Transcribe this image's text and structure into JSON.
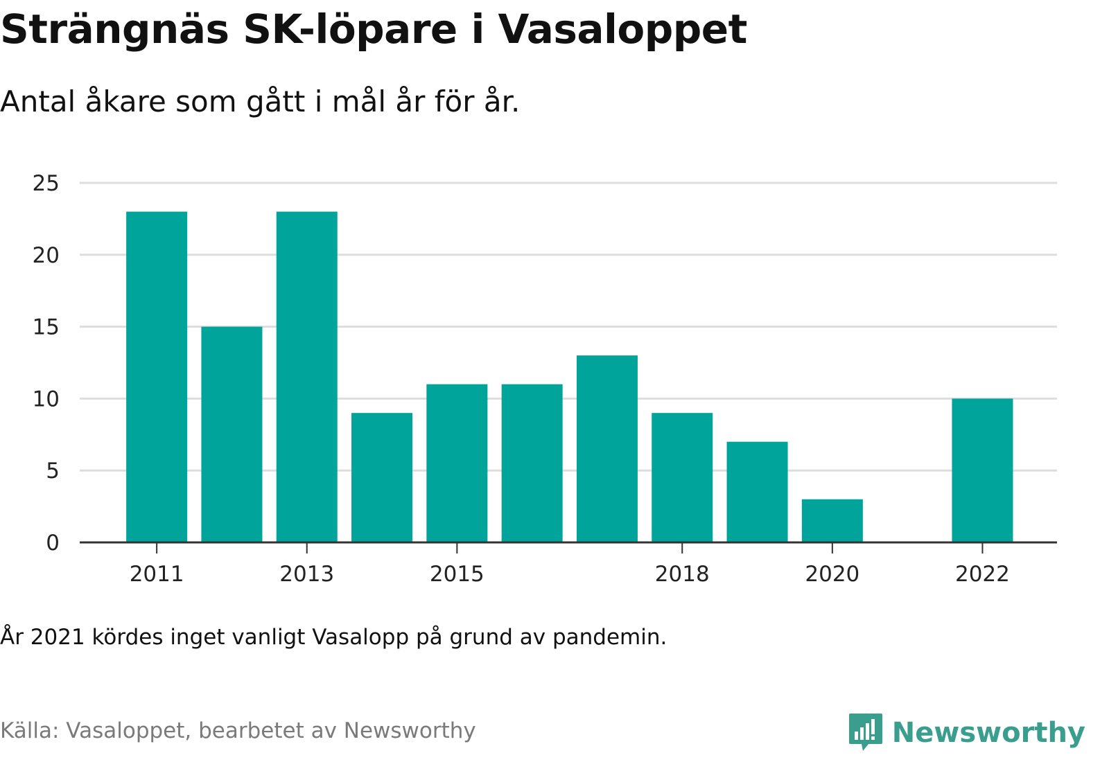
{
  "title": "Strängnäs SK-löpare i Vasaloppet",
  "subtitle": "Antal åkare som gått i mål år för år.",
  "note": "År 2021 kördes inget vanligt Vasalopp på grund av pandemin.",
  "source": "Källa: Vasaloppet, bearbetet av Newsworthy",
  "brand": {
    "name": "Newsworthy",
    "icon": "newsworthy-logo-icon"
  },
  "colors": {
    "bar": "#00a49a",
    "grid": "#dddddd",
    "axis": "#333333",
    "brand": "#3a9e8f"
  },
  "chart_data": {
    "type": "bar",
    "categories": [
      "2011",
      "2012",
      "2013",
      "2014",
      "2015",
      "2016",
      "2017",
      "2018",
      "2019",
      "2020",
      "2021",
      "2022"
    ],
    "values": [
      23,
      15,
      23,
      9,
      11,
      11,
      13,
      9,
      7,
      3,
      null,
      10
    ],
    "x_tick_labels": [
      "2011",
      "2013",
      "2015",
      "2018",
      "2020",
      "2022"
    ],
    "y_ticks": [
      0,
      5,
      10,
      15,
      20,
      25
    ],
    "ylim": [
      0,
      25
    ],
    "grid": true,
    "legend": "none",
    "title": "Strängnäs SK-löpare i Vasaloppet",
    "xlabel": "",
    "ylabel": ""
  }
}
